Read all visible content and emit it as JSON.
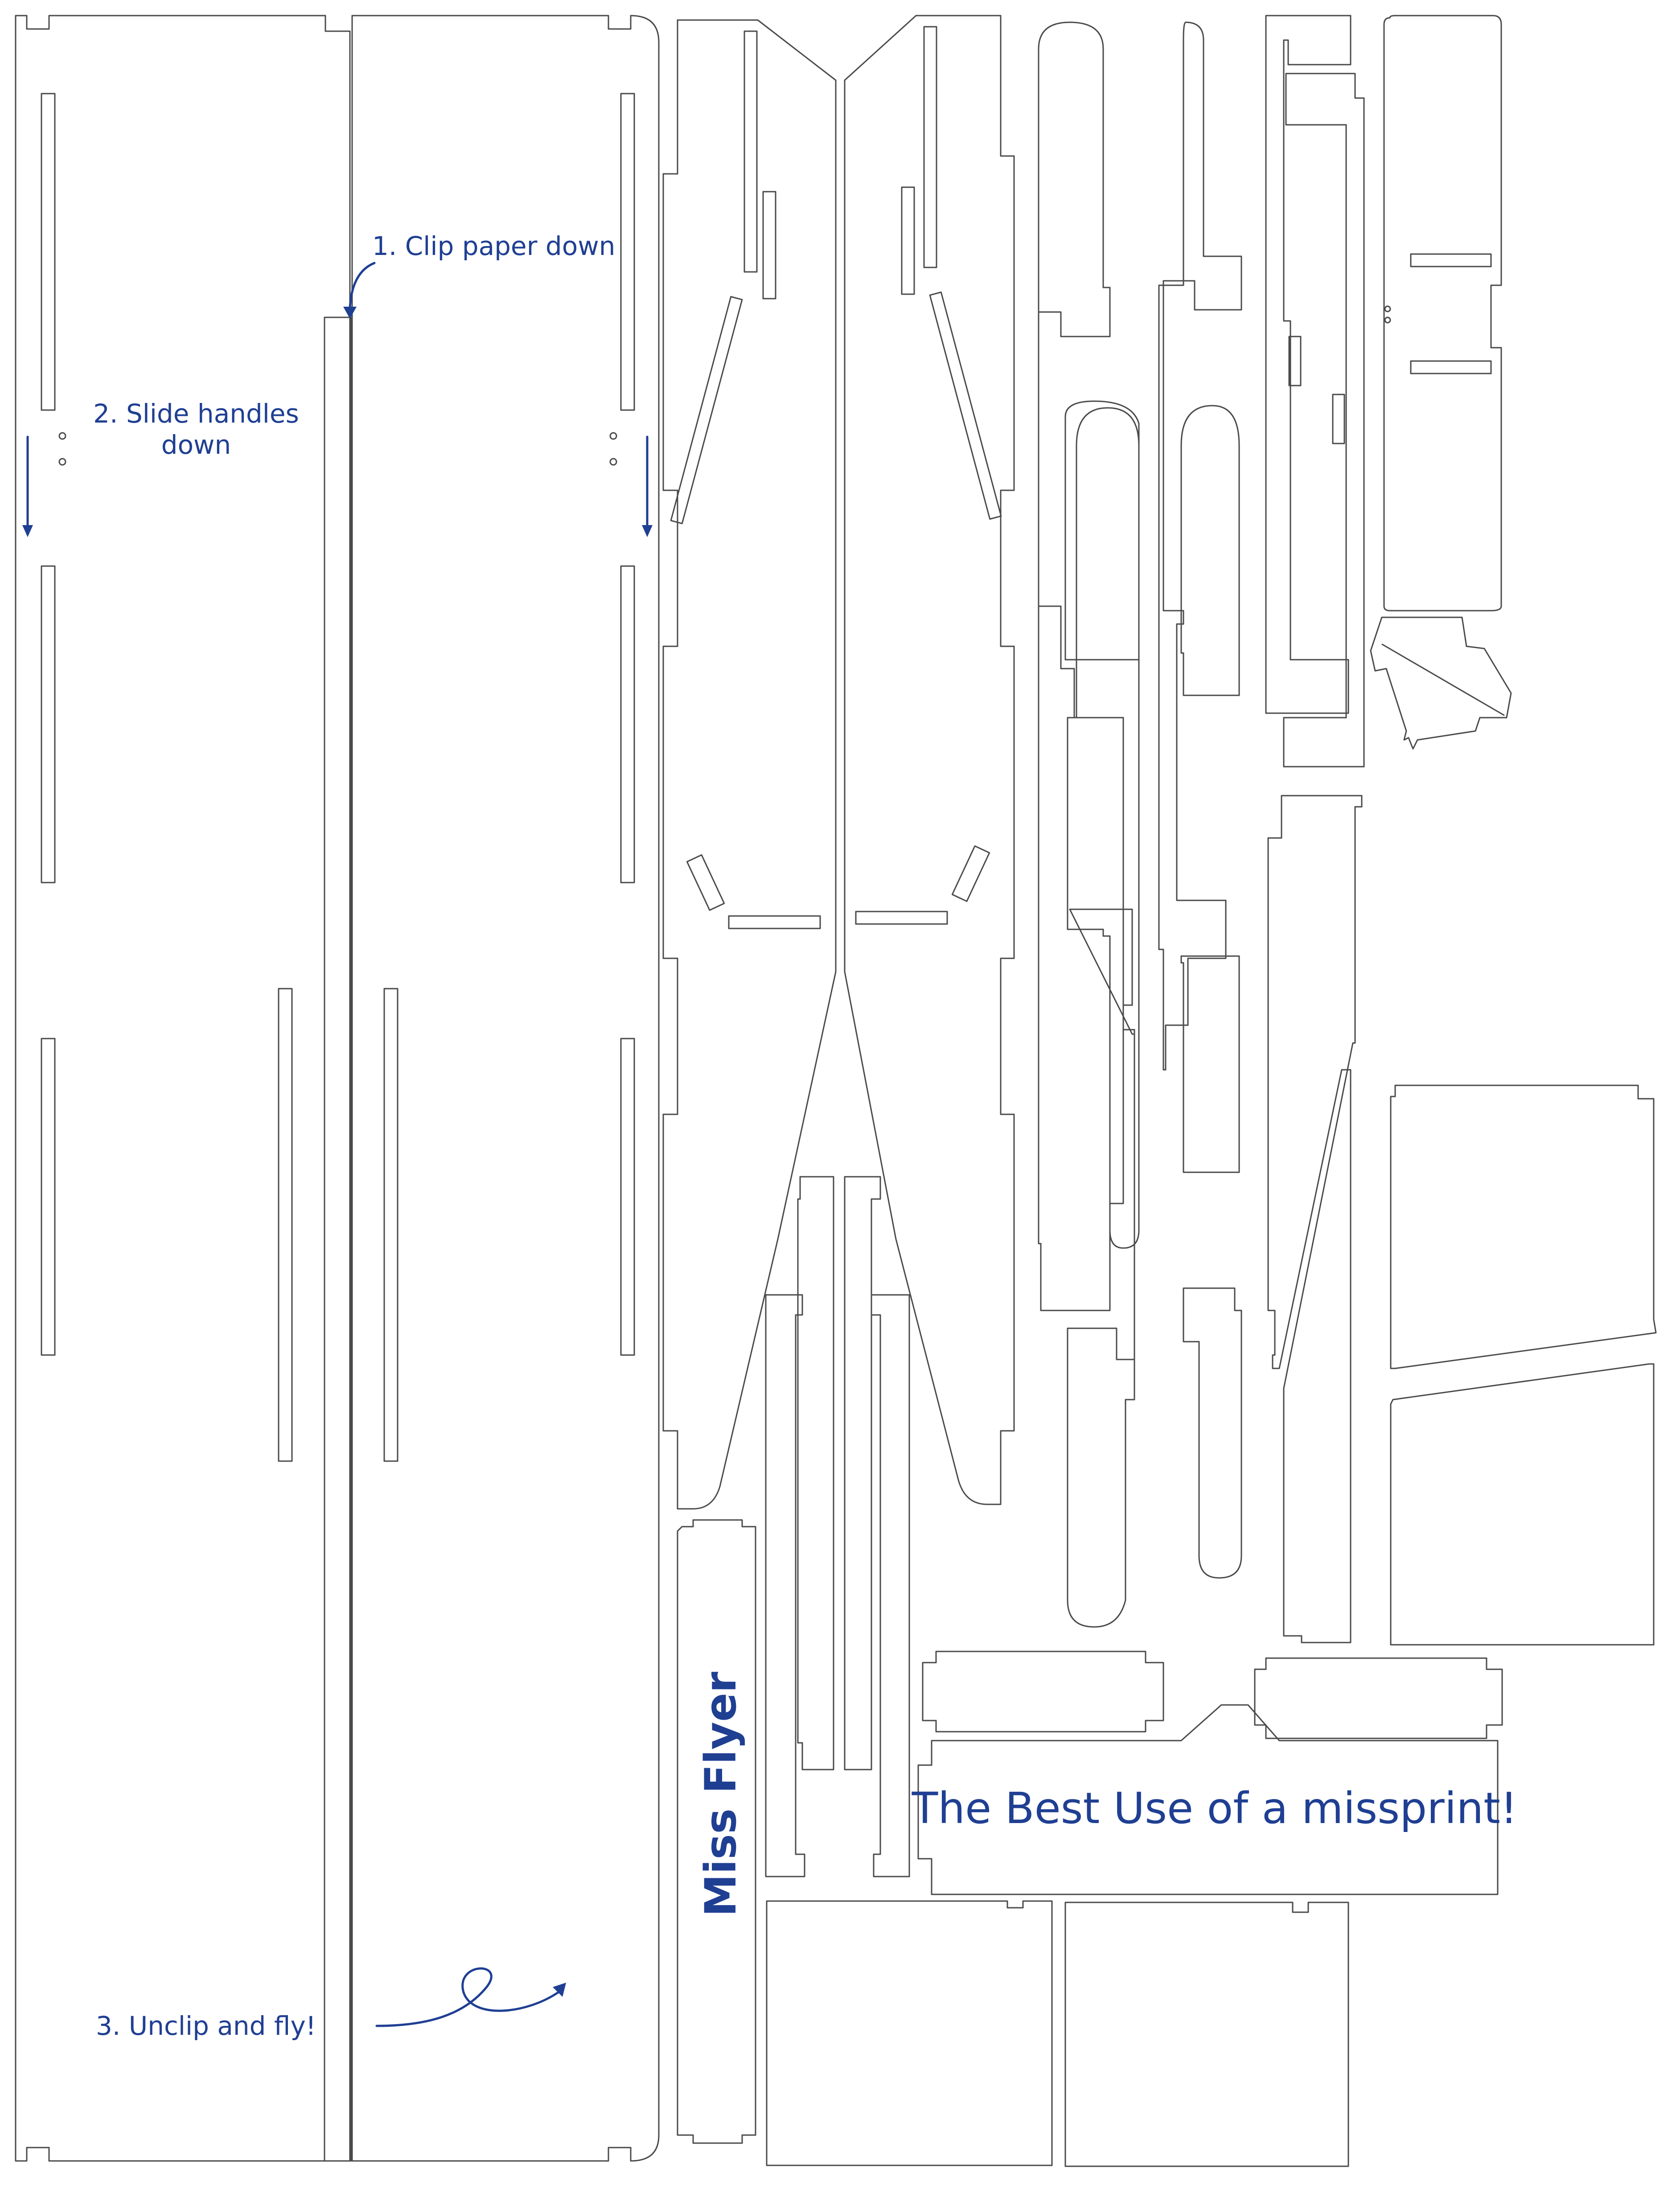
{
  "instructions": {
    "step1": "1. Clip paper down",
    "step2_line1": "2. Slide handles",
    "step2_line2": "down",
    "step3": "3. Unclip and fly!"
  },
  "slogan": "The Best Use of a missprint!",
  "brand": "Miss Flyer",
  "colors": {
    "ink": "#1f3f93",
    "cut_line": "#4a4a4a",
    "paper": "#ffffff"
  }
}
